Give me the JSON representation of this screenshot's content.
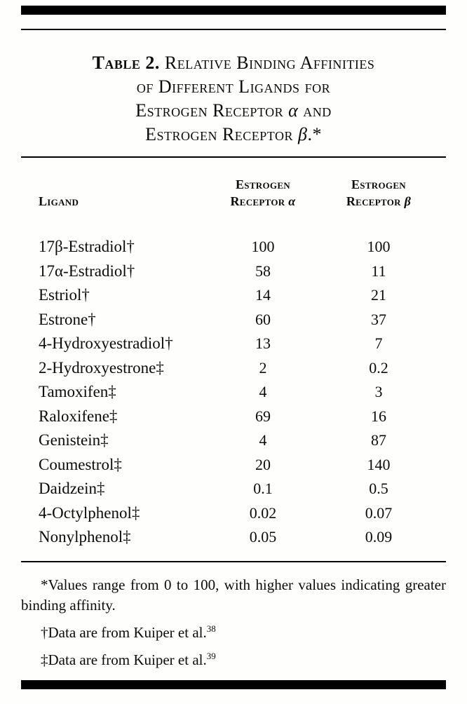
{
  "page": {
    "title": {
      "label": "Table 2.",
      "line1_rest": " Relative Binding Affinities",
      "line2": "of Different Ligands for",
      "line3_pre": "Estrogen Receptor ",
      "line3_symbol": "α",
      "line3_post": " and",
      "line4_pre": "Estrogen Receptor ",
      "line4_symbol": "β",
      "line4_post": ".*"
    },
    "headers": {
      "ligand": "Ligand",
      "alpha_line1": "Estrogen",
      "alpha_line2_pre": "Receptor ",
      "alpha_symbol": "α",
      "beta_line1": "Estrogen",
      "beta_line2_pre": "Receptor ",
      "beta_symbol": "β"
    },
    "rows": [
      {
        "ligand": "17β-Estradiol†",
        "alpha": "100",
        "beta": "100"
      },
      {
        "ligand": "17α-Estradiol†",
        "alpha": "58",
        "beta": "11"
      },
      {
        "ligand": "Estriol†",
        "alpha": "14",
        "beta": "21"
      },
      {
        "ligand": "Estrone†",
        "alpha": "60",
        "beta": "37"
      },
      {
        "ligand": "4-Hydroxyestradiol†",
        "alpha": "13",
        "beta": "7"
      },
      {
        "ligand": "2-Hydroxyestrone‡",
        "alpha": "2",
        "beta": "0.2"
      },
      {
        "ligand": "Tamoxifen‡",
        "alpha": "4",
        "beta": "3"
      },
      {
        "ligand": "Raloxifene‡",
        "alpha": "69",
        "beta": "16"
      },
      {
        "ligand": "Genistein‡",
        "alpha": "4",
        "beta": "87"
      },
      {
        "ligand": "Coumestrol‡",
        "alpha": "20",
        "beta": "140"
      },
      {
        "ligand": "Daidzein‡",
        "alpha": "0.1",
        "beta": "0.5"
      },
      {
        "ligand": "4-Octylphenol‡",
        "alpha": "0.02",
        "beta": "0.07"
      },
      {
        "ligand": "Nonylphenol‡",
        "alpha": "0.05",
        "beta": "0.09"
      }
    ],
    "footnotes": {
      "asterisk": "*Values range from 0 to 100, with higher values indicating greater binding affinity.",
      "dagger_text": "†Data are from Kuiper et al.",
      "dagger_ref": "38",
      "ddagger_text": "‡Data are from Kuiper et al.",
      "ddagger_ref": "39"
    }
  }
}
